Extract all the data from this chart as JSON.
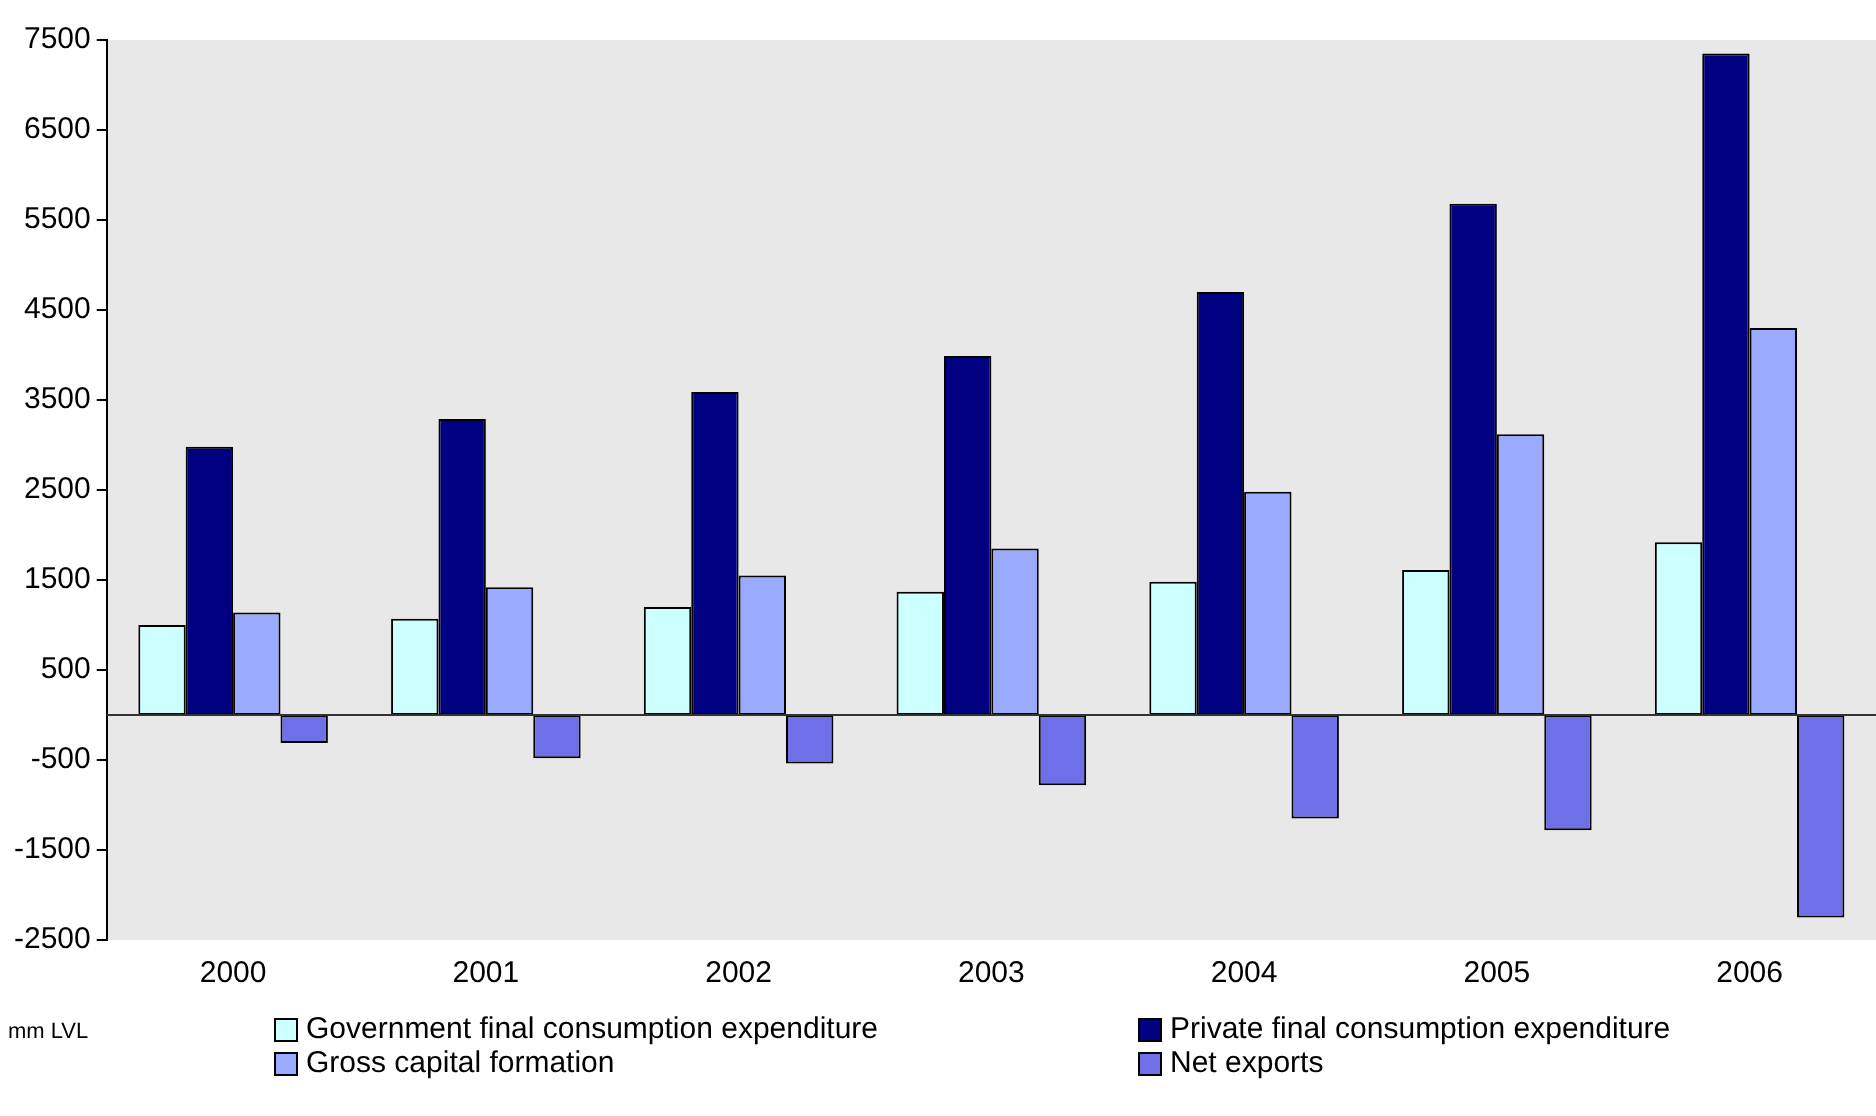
{
  "chart_data": {
    "type": "bar",
    "ylabel": "mm LVL",
    "categories": [
      "2000",
      "2001",
      "2002",
      "2003",
      "2004",
      "2005",
      "2006"
    ],
    "series": [
      {
        "name": "Government final consumption expenditure",
        "color": "#ccffff",
        "values": [
          1000,
          1070,
          1200,
          1370,
          1480,
          1610,
          1920
        ]
      },
      {
        "name": "Private final consumption expenditure",
        "color": "#000080",
        "values": [
          2980,
          3290,
          3590,
          3990,
          4700,
          5680,
          7350
        ]
      },
      {
        "name": "Gross capital formation",
        "color": "#99aaff",
        "values": [
          1140,
          1420,
          1550,
          1850,
          2480,
          3120,
          4300
        ]
      },
      {
        "name": "Net exports",
        "color": "#6f6fe8",
        "values": [
          -310,
          -480,
          -540,
          -780,
          -1150,
          -1280,
          -2250
        ]
      }
    ],
    "ylim": [
      -2500,
      7500
    ],
    "yticks": [
      -2500,
      -1500,
      -500,
      500,
      1500,
      2500,
      3500,
      4500,
      5500,
      6500,
      7500
    ],
    "grid": false,
    "legend": "bottom"
  }
}
